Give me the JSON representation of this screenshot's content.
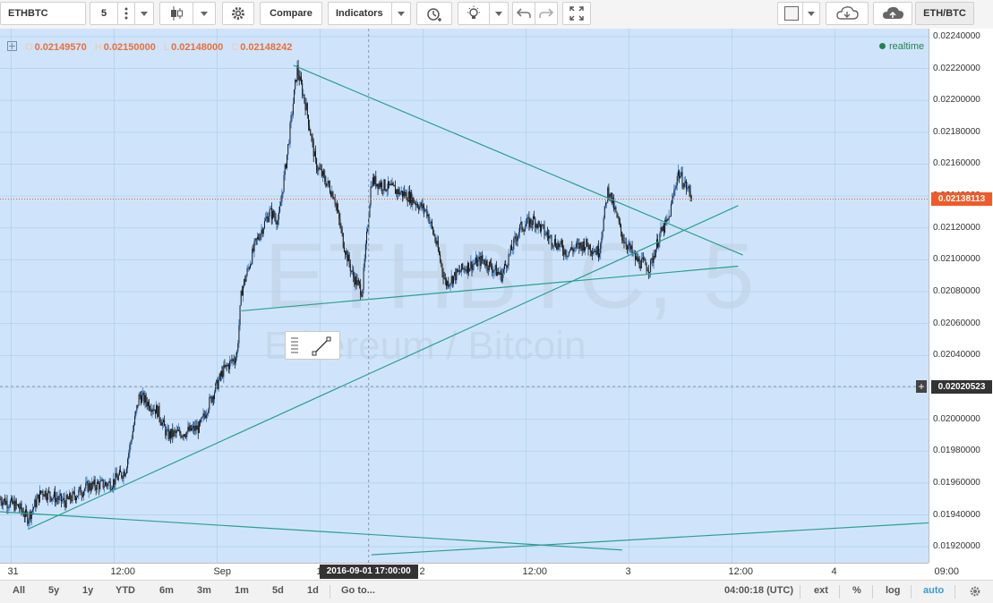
{
  "toolbar": {
    "symbol": "ETHBTC",
    "interval": "5",
    "compare_label": "Compare",
    "indicators_label": "Indicators",
    "pair_label": "ETH/BTC"
  },
  "legend": {
    "open_label": "O",
    "open_value": "0.02149570",
    "high_label": "H",
    "high_value": "0.02150000",
    "low_label": "L",
    "low_value": "0.02148000",
    "close_label": "C",
    "close_value": "0.02148242",
    "realtime_label": "realtime"
  },
  "watermark": {
    "symbol_text": "ETHBTC, 5",
    "description": "Ethereum / Bitcoin"
  },
  "chart_data": {
    "type": "candlestick",
    "ylim": [
      0.0191,
      0.02245
    ],
    "y_ticks": [
      "0.02240000",
      "0.02220000",
      "0.02200000",
      "0.02180000",
      "0.02160000",
      "0.02140000",
      "0.02120000",
      "0.02100000",
      "0.02080000",
      "0.02060000",
      "0.02040000",
      "0.02020000",
      "0.02000000",
      "0.01980000",
      "0.01960000",
      "0.01940000",
      "0.01920000"
    ],
    "x_ticks": [
      "31",
      "12:00",
      "Sep",
      "12:00",
      "2",
      "12:00",
      "3",
      "12:00",
      "4",
      "09:00"
    ],
    "last_price_label": "0.02138113",
    "last_price": 0.02138113,
    "crosshair_price_label": "0.02020523",
    "crosshair_price": 0.02020523,
    "crosshair_time_label": "2016-09-01 17:00:00",
    "price_path": [
      [
        0,
        0.0195
      ],
      [
        0.02,
        0.01945
      ],
      [
        0.03,
        0.01938
      ],
      [
        0.045,
        0.01955
      ],
      [
        0.07,
        0.01948
      ],
      [
        0.095,
        0.01958
      ],
      [
        0.12,
        0.0196
      ],
      [
        0.135,
        0.01968
      ],
      [
        0.15,
        0.02015
      ],
      [
        0.17,
        0.02005
      ],
      [
        0.18,
        0.0199
      ],
      [
        0.2,
        0.01992
      ],
      [
        0.215,
        0.01995
      ],
      [
        0.225,
        0.0201
      ],
      [
        0.24,
        0.0203
      ],
      [
        0.255,
        0.0204
      ],
      [
        0.26,
        0.0208
      ],
      [
        0.275,
        0.0211
      ],
      [
        0.29,
        0.0213
      ],
      [
        0.3,
        0.02125
      ],
      [
        0.31,
        0.0217
      ],
      [
        0.32,
        0.0222
      ],
      [
        0.33,
        0.02195
      ],
      [
        0.34,
        0.0216
      ],
      [
        0.35,
        0.0215
      ],
      [
        0.36,
        0.0214
      ],
      [
        0.37,
        0.0211
      ],
      [
        0.38,
        0.0209
      ],
      [
        0.39,
        0.0208
      ],
      [
        0.4,
        0.0215
      ],
      [
        0.42,
        0.02145
      ],
      [
        0.44,
        0.0214
      ],
      [
        0.46,
        0.0213
      ],
      [
        0.47,
        0.0211
      ],
      [
        0.48,
        0.02085
      ],
      [
        0.5,
        0.02095
      ],
      [
        0.52,
        0.021
      ],
      [
        0.54,
        0.0209
      ],
      [
        0.56,
        0.0212
      ],
      [
        0.575,
        0.02125
      ],
      [
        0.59,
        0.02115
      ],
      [
        0.61,
        0.02105
      ],
      [
        0.63,
        0.0211
      ],
      [
        0.645,
        0.02105
      ],
      [
        0.655,
        0.02145
      ],
      [
        0.67,
        0.02115
      ],
      [
        0.685,
        0.021
      ],
      [
        0.7,
        0.02095
      ],
      [
        0.71,
        0.02115
      ],
      [
        0.72,
        0.02125
      ],
      [
        0.73,
        0.02155
      ],
      [
        0.745,
        0.0214
      ]
    ],
    "trendlines": [
      {
        "x1": 0.316,
        "y1": 0.02222,
        "x2": 0.8,
        "y2": 0.02103
      },
      {
        "x1": 0.26,
        "y1": 0.02068,
        "x2": 0.795,
        "y2": 0.02096
      },
      {
        "x1": 0.03,
        "y1": 0.01931,
        "x2": 0.795,
        "y2": 0.02134
      },
      {
        "x1": 0.0,
        "y1": 0.01942,
        "x2": 0.67,
        "y2": 0.01918
      },
      {
        "x1": 0.4,
        "y1": 0.01915,
        "x2": 1.0,
        "y2": 0.01935
      }
    ]
  },
  "bottom": {
    "ranges": [
      "All",
      "5y",
      "1y",
      "YTD",
      "6m",
      "3m",
      "1m",
      "5d",
      "1d"
    ],
    "goto_label": "Go to...",
    "clock": "04:00:18 (UTC)",
    "ext_label": "ext",
    "percent_label": "%",
    "log_label": "log",
    "auto_label": "auto"
  },
  "colors": {
    "background": "#cfe4fa",
    "grid": "#b7d3f2",
    "trendline": "#2aa08e",
    "candle": "#1a1a1a",
    "wick_up": "#3477c9",
    "last_price": "#f05a28",
    "legend_value": "#e8703a",
    "realtime": "#22844e"
  }
}
